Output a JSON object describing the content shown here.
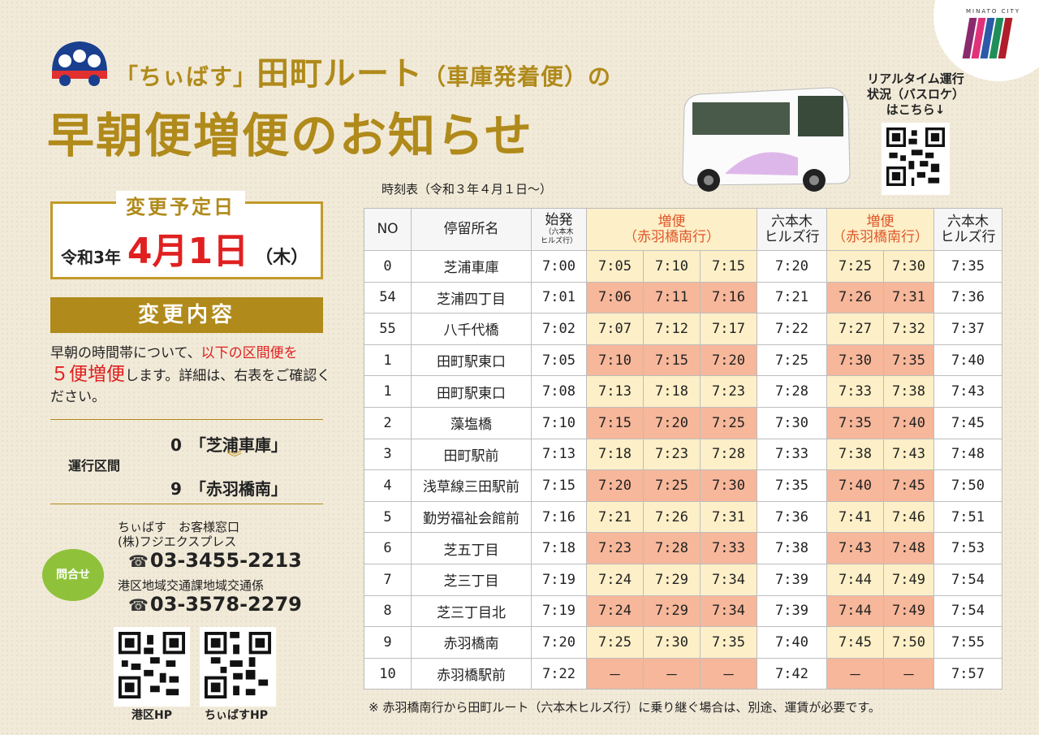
{
  "header": {
    "subtitle_pre": "「ちぃばす」",
    "subtitle_route": "田町ルート",
    "subtitle_paren": "（車庫発着便）",
    "subtitle_post": "の",
    "title": "早朝便増便のお知らせ",
    "city_logo_text": "MINATO CITY"
  },
  "realtime": {
    "line1": "リアルタイム運行",
    "line2": "状況（バスロケ）",
    "line3": "はこちら↓"
  },
  "change_date": {
    "label": "変更予定日",
    "era": "令和3年",
    "day": "4月1日",
    "weekday": "（木）"
  },
  "change_content": {
    "heading": "変更内容",
    "text_1": "早朝の時間帯について、",
    "text_red": "以下の区間便を",
    "text_big": "５便増便",
    "text_2": "します。詳細は、右表をご確認ください。"
  },
  "route": {
    "label": "運行区間",
    "from_no": "0",
    "from_name": "「芝浦車庫」",
    "to_no": "9",
    "to_name": "「赤羽橋南」"
  },
  "contact": {
    "badge": "問合せ",
    "name1": "ちぃばす　お客様窓口",
    "company": "(株)フジエクスプレス",
    "phone1": "03-3455-2213",
    "name2": "港区地域交通課地域交通係",
    "phone2": "03-3578-2279",
    "qr1_label": "港区HP",
    "qr2_label": "ちぃばすHP"
  },
  "timetable": {
    "caption": "時刻表（令和３年４月１日～）",
    "headers": {
      "no": "NO",
      "stop": "停留所名",
      "first": "始発",
      "first_sub1": "（六本木",
      "first_sub2": "ヒルズ行）",
      "inc1_a": "増便",
      "inc1_b": "（赤羽橋南行）",
      "rop1_a": "六本木",
      "rop1_b": "ヒルズ行",
      "inc2_a": "増便",
      "inc2_b": "（赤羽橋南行）",
      "rop2_a": "六本木",
      "rop2_b": "ヒルズ行"
    },
    "rows": [
      {
        "no": "0",
        "stop": "芝浦車庫",
        "t": [
          "7:00",
          "7:05",
          "7:10",
          "7:15",
          "7:20",
          "7:25",
          "7:30",
          "7:35"
        ]
      },
      {
        "no": "54",
        "stop": "芝浦四丁目",
        "t": [
          "7:01",
          "7:06",
          "7:11",
          "7:16",
          "7:21",
          "7:26",
          "7:31",
          "7:36"
        ]
      },
      {
        "no": "55",
        "stop": "八千代橋",
        "t": [
          "7:02",
          "7:07",
          "7:12",
          "7:17",
          "7:22",
          "7:27",
          "7:32",
          "7:37"
        ]
      },
      {
        "no": "1",
        "stop": "田町駅東口",
        "t": [
          "7:05",
          "7:10",
          "7:15",
          "7:20",
          "7:25",
          "7:30",
          "7:35",
          "7:40"
        ]
      },
      {
        "no": "1",
        "stop": "田町駅東口",
        "t": [
          "7:08",
          "7:13",
          "7:18",
          "7:23",
          "7:28",
          "7:33",
          "7:38",
          "7:43"
        ]
      },
      {
        "no": "2",
        "stop": "藻塩橋",
        "t": [
          "7:10",
          "7:15",
          "7:20",
          "7:25",
          "7:30",
          "7:35",
          "7:40",
          "7:45"
        ]
      },
      {
        "no": "3",
        "stop": "田町駅前",
        "t": [
          "7:13",
          "7:18",
          "7:23",
          "7:28",
          "7:33",
          "7:38",
          "7:43",
          "7:48"
        ]
      },
      {
        "no": "4",
        "stop": "浅草線三田駅前",
        "t": [
          "7:15",
          "7:20",
          "7:25",
          "7:30",
          "7:35",
          "7:40",
          "7:45",
          "7:50"
        ]
      },
      {
        "no": "5",
        "stop": "勤労福祉会館前",
        "t": [
          "7:16",
          "7:21",
          "7:26",
          "7:31",
          "7:36",
          "7:41",
          "7:46",
          "7:51"
        ]
      },
      {
        "no": "6",
        "stop": "芝五丁目",
        "t": [
          "7:18",
          "7:23",
          "7:28",
          "7:33",
          "7:38",
          "7:43",
          "7:48",
          "7:53"
        ]
      },
      {
        "no": "7",
        "stop": "芝三丁目",
        "t": [
          "7:19",
          "7:24",
          "7:29",
          "7:34",
          "7:39",
          "7:44",
          "7:49",
          "7:54"
        ]
      },
      {
        "no": "8",
        "stop": "芝三丁目北",
        "t": [
          "7:19",
          "7:24",
          "7:29",
          "7:34",
          "7:39",
          "7:44",
          "7:49",
          "7:54"
        ]
      },
      {
        "no": "9",
        "stop": "赤羽橋南",
        "t": [
          "7:20",
          "7:25",
          "7:30",
          "7:35",
          "7:40",
          "7:45",
          "7:50",
          "7:55"
        ]
      },
      {
        "no": "10",
        "stop": "赤羽橋駅前",
        "t": [
          "7:22",
          "－",
          "－",
          "－",
          "7:42",
          "－",
          "－",
          "7:57"
        ]
      }
    ],
    "note": "※ 赤羽橋南行から田町ルート（六本木ヒルズ行）に乗り継ぐ場合は、別途、運賃が必要です。"
  },
  "colors": {
    "gold": "#b08a1a",
    "red": "#e02020",
    "highlight": "#f7b79a",
    "light": "#fdefc7",
    "green": "#8fc23a"
  }
}
